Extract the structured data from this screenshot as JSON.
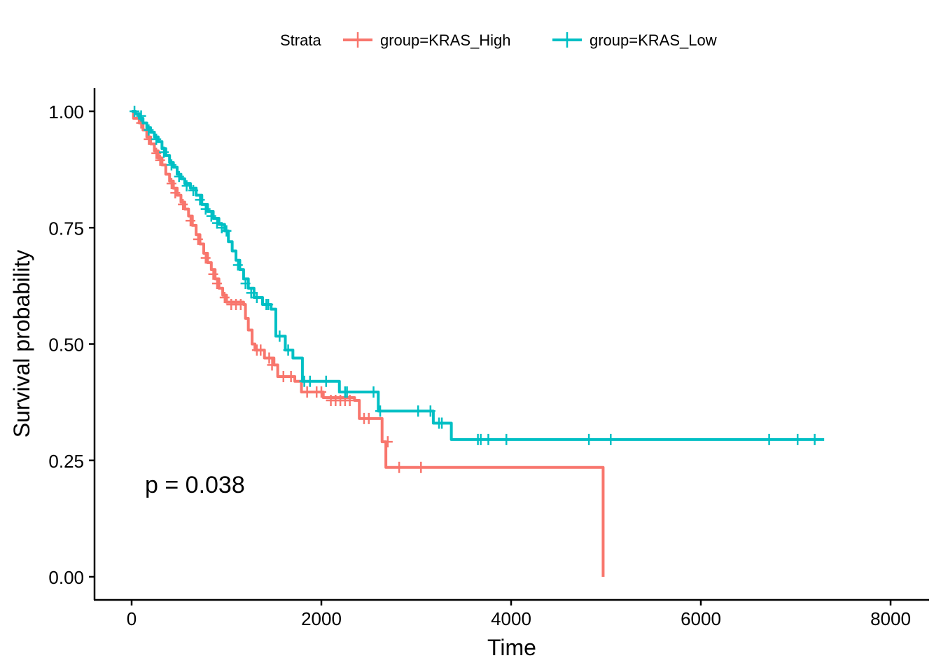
{
  "chart_data": {
    "type": "line",
    "subtype": "kaplan-meier",
    "title": "",
    "xlabel": "Time",
    "ylabel": "Survival probability",
    "xlim": [
      -200,
      8200
    ],
    "ylim": [
      -0.05,
      1.05
    ],
    "xticks": [
      0,
      2000,
      4000,
      6000,
      8000
    ],
    "xtick_labels": [
      "0",
      "2000",
      "4000",
      "6000",
      "8000"
    ],
    "yticks": [
      0,
      0.25,
      0.5,
      0.75,
      1.0
    ],
    "ytick_labels": [
      "0.00",
      "0.25",
      "0.50",
      "0.75",
      "1.00"
    ],
    "grid": false,
    "legend": {
      "title": "Strata",
      "placement": "top",
      "entries": [
        "group=KRAS_High",
        "group=KRAS_Low"
      ]
    },
    "annotation": "p = 0.038",
    "series": [
      {
        "name": "group=KRAS_High",
        "color": "#F8766D",
        "steps": [
          [
            0,
            1.0
          ],
          [
            20,
            0.985
          ],
          [
            80,
            0.975
          ],
          [
            120,
            0.96
          ],
          [
            160,
            0.945
          ],
          [
            200,
            0.93
          ],
          [
            240,
            0.915
          ],
          [
            280,
            0.9
          ],
          [
            320,
            0.885
          ],
          [
            360,
            0.865
          ],
          [
            400,
            0.85
          ],
          [
            440,
            0.835
          ],
          [
            480,
            0.82
          ],
          [
            520,
            0.805
          ],
          [
            560,
            0.79
          ],
          [
            600,
            0.775
          ],
          [
            640,
            0.755
          ],
          [
            680,
            0.735
          ],
          [
            720,
            0.715
          ],
          [
            760,
            0.695
          ],
          [
            800,
            0.675
          ],
          [
            840,
            0.66
          ],
          [
            880,
            0.64
          ],
          [
            920,
            0.62
          ],
          [
            960,
            0.605
          ],
          [
            1000,
            0.59
          ],
          [
            1180,
            0.585
          ],
          [
            1200,
            0.555
          ],
          [
            1230,
            0.53
          ],
          [
            1270,
            0.5
          ],
          [
            1300,
            0.487
          ],
          [
            1400,
            0.47
          ],
          [
            1500,
            0.455
          ],
          [
            1540,
            0.43
          ],
          [
            1720,
            0.42
          ],
          [
            1790,
            0.397
          ],
          [
            2020,
            0.385
          ],
          [
            2350,
            0.379
          ],
          [
            2400,
            0.34
          ],
          [
            2640,
            0.29
          ],
          [
            2680,
            0.235
          ],
          [
            4970,
            0.0
          ]
        ],
        "censored": [
          [
            100,
            0.975
          ],
          [
            180,
            0.94
          ],
          [
            260,
            0.91
          ],
          [
            300,
            0.895
          ],
          [
            420,
            0.845
          ],
          [
            460,
            0.825
          ],
          [
            540,
            0.8
          ],
          [
            620,
            0.765
          ],
          [
            700,
            0.725
          ],
          [
            780,
            0.685
          ],
          [
            860,
            0.65
          ],
          [
            900,
            0.63
          ],
          [
            980,
            0.6
          ],
          [
            1050,
            0.585
          ],
          [
            1100,
            0.585
          ],
          [
            1150,
            0.585
          ],
          [
            1320,
            0.487
          ],
          [
            1360,
            0.487
          ],
          [
            1450,
            0.47
          ],
          [
            1480,
            0.455
          ],
          [
            1600,
            0.43
          ],
          [
            1680,
            0.43
          ],
          [
            1850,
            0.397
          ],
          [
            1950,
            0.397
          ],
          [
            2000,
            0.397
          ],
          [
            2100,
            0.379
          ],
          [
            2150,
            0.379
          ],
          [
            2200,
            0.379
          ],
          [
            2250,
            0.379
          ],
          [
            2300,
            0.379
          ],
          [
            2450,
            0.34
          ],
          [
            2500,
            0.34
          ],
          [
            2700,
            0.29
          ],
          [
            2820,
            0.235
          ],
          [
            3050,
            0.235
          ]
        ]
      },
      {
        "name": "group=KRAS_Low",
        "color": "#00BFC4",
        "steps": [
          [
            0,
            1.0
          ],
          [
            40,
            0.995
          ],
          [
            80,
            0.985
          ],
          [
            120,
            0.975
          ],
          [
            160,
            0.965
          ],
          [
            200,
            0.955
          ],
          [
            240,
            0.945
          ],
          [
            280,
            0.935
          ],
          [
            320,
            0.92
          ],
          [
            360,
            0.905
          ],
          [
            400,
            0.89
          ],
          [
            440,
            0.88
          ],
          [
            480,
            0.865
          ],
          [
            520,
            0.855
          ],
          [
            560,
            0.845
          ],
          [
            620,
            0.835
          ],
          [
            680,
            0.82
          ],
          [
            740,
            0.8
          ],
          [
            800,
            0.785
          ],
          [
            860,
            0.77
          ],
          [
            920,
            0.757
          ],
          [
            980,
            0.743
          ],
          [
            1020,
            0.72
          ],
          [
            1060,
            0.7
          ],
          [
            1100,
            0.68
          ],
          [
            1140,
            0.66
          ],
          [
            1180,
            0.64
          ],
          [
            1230,
            0.62
          ],
          [
            1290,
            0.6
          ],
          [
            1380,
            0.585
          ],
          [
            1470,
            0.575
          ],
          [
            1520,
            0.517
          ],
          [
            1620,
            0.487
          ],
          [
            1700,
            0.47
          ],
          [
            1800,
            0.42
          ],
          [
            2190,
            0.397
          ],
          [
            2600,
            0.356
          ],
          [
            3180,
            0.33
          ],
          [
            3370,
            0.295
          ],
          [
            7300,
            0.295
          ]
        ],
        "censored": [
          [
            30,
            1.0
          ],
          [
            100,
            0.99
          ],
          [
            180,
            0.96
          ],
          [
            260,
            0.94
          ],
          [
            340,
            0.912
          ],
          [
            420,
            0.885
          ],
          [
            500,
            0.86
          ],
          [
            580,
            0.84
          ],
          [
            650,
            0.83
          ],
          [
            720,
            0.81
          ],
          [
            780,
            0.79
          ],
          [
            840,
            0.775
          ],
          [
            900,
            0.76
          ],
          [
            950,
            0.75
          ],
          [
            1000,
            0.743
          ],
          [
            1120,
            0.67
          ],
          [
            1200,
            0.63
          ],
          [
            1260,
            0.61
          ],
          [
            1320,
            0.6
          ],
          [
            1420,
            0.585
          ],
          [
            1440,
            0.585
          ],
          [
            1560,
            0.517
          ],
          [
            1650,
            0.487
          ],
          [
            1820,
            0.42
          ],
          [
            1880,
            0.42
          ],
          [
            2050,
            0.42
          ],
          [
            2250,
            0.397
          ],
          [
            2270,
            0.397
          ],
          [
            2550,
            0.397
          ],
          [
            2620,
            0.356
          ],
          [
            3020,
            0.356
          ],
          [
            3150,
            0.356
          ],
          [
            3240,
            0.33
          ],
          [
            3270,
            0.33
          ],
          [
            3650,
            0.295
          ],
          [
            3680,
            0.295
          ],
          [
            3760,
            0.295
          ],
          [
            3950,
            0.295
          ],
          [
            4820,
            0.295
          ],
          [
            5050,
            0.295
          ],
          [
            6720,
            0.295
          ],
          [
            7020,
            0.295
          ],
          [
            7200,
            0.295
          ]
        ]
      }
    ]
  }
}
